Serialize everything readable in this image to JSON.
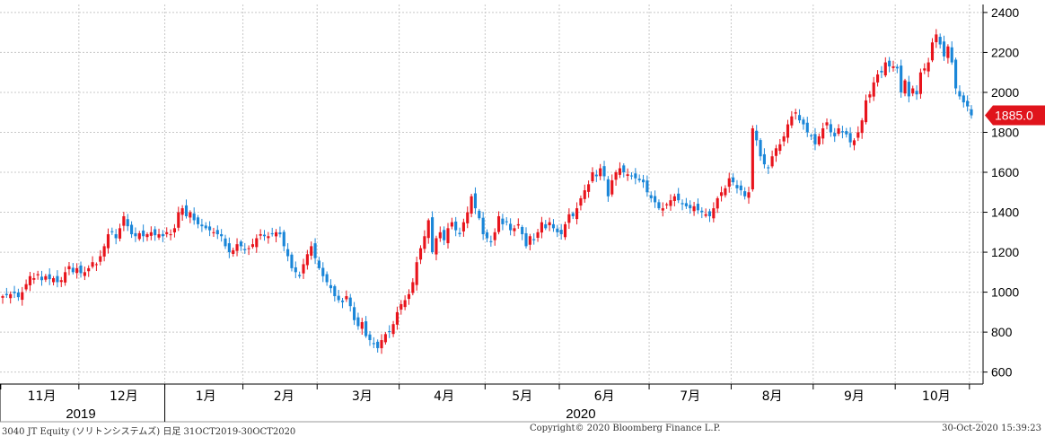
{
  "chart_data": {
    "type": "candlestick",
    "y_axis": {
      "position": "right",
      "ticks": [
        600,
        800,
        1000,
        1200,
        1400,
        1600,
        1800,
        2000,
        2200,
        2400
      ],
      "range": [
        540,
        2440
      ]
    },
    "grid": true,
    "last_price_label": "1885.0",
    "x_axis": {
      "months": [
        {
          "label": "11月",
          "idx": 10
        },
        {
          "label": "12月",
          "idx": 31
        },
        {
          "label": "1月",
          "idx": 52
        },
        {
          "label": "2月",
          "idx": 72
        },
        {
          "label": "3月",
          "idx": 92
        },
        {
          "label": "4月",
          "idx": 113
        },
        {
          "label": "5月",
          "idx": 133
        },
        {
          "label": "6月",
          "idx": 154
        },
        {
          "label": "7月",
          "idx": 176
        },
        {
          "label": "8月",
          "idx": 197
        },
        {
          "label": "9月",
          "idx": 218
        },
        {
          "label": "10月",
          "idx": 239
        }
      ],
      "month_boundaries": [
        0,
        20,
        42,
        62,
        81,
        102,
        124,
        143,
        166,
        187,
        208,
        229,
        250
      ],
      "years": [
        {
          "label": "2019",
          "idx": 20
        },
        {
          "label": "2020",
          "idx": 148
        }
      ]
    },
    "series": [
      {
        "name": "close",
        "values": [
          980,
          985,
          990,
          995,
          975,
          1000,
          1040,
          1080,
          1070,
          1090,
          1060,
          1080,
          1065,
          1070,
          1050,
          1060,
          1100,
          1130,
          1100,
          1120,
          1095,
          1100,
          1120,
          1150,
          1140,
          1180,
          1230,
          1290,
          1300,
          1270,
          1320,
          1380,
          1330,
          1290,
          1280,
          1295,
          1280,
          1290,
          1300,
          1285,
          1290,
          1280,
          1300,
          1290,
          1320,
          1400,
          1420,
          1380,
          1400,
          1360,
          1340,
          1330,
          1320,
          1310,
          1300,
          1290,
          1280,
          1230,
          1200,
          1210,
          1240,
          1230,
          1210,
          1220,
          1240,
          1270,
          1290,
          1280,
          1280,
          1290,
          1300,
          1290,
          1230,
          1180,
          1120,
          1100,
          1080,
          1140,
          1190,
          1230,
          1170,
          1120,
          1080,
          1050,
          1020,
          980,
          960,
          950,
          980,
          930,
          860,
          830,
          850,
          780,
          760,
          740,
          720,
          760,
          790,
          800,
          840,
          900,
          940,
          960,
          990,
          1050,
          1150,
          1220,
          1280,
          1360,
          1200,
          1270,
          1300,
          1260,
          1320,
          1350,
          1310,
          1290,
          1350,
          1400,
          1480,
          1420,
          1370,
          1290,
          1270,
          1250,
          1300,
          1380,
          1340,
          1350,
          1310,
          1320,
          1340,
          1290,
          1230,
          1280,
          1260,
          1300,
          1350,
          1320,
          1350,
          1320,
          1300,
          1290,
          1340,
          1390,
          1380,
          1420,
          1470,
          1510,
          1540,
          1600,
          1580,
          1620,
          1580,
          1480,
          1560,
          1600,
          1620,
          1600,
          1590,
          1580,
          1570,
          1560,
          1550,
          1500,
          1470,
          1450,
          1420,
          1420,
          1440,
          1460,
          1480,
          1460,
          1440,
          1430,
          1420,
          1430,
          1410,
          1400,
          1390,
          1380,
          1420,
          1470,
          1500,
          1520,
          1570,
          1550,
          1520,
          1510,
          1480,
          1500,
          1820,
          1760,
          1680,
          1640,
          1620,
          1680,
          1720,
          1740,
          1780,
          1840,
          1880,
          1900,
          1860,
          1840,
          1800,
          1780,
          1740,
          1780,
          1820,
          1850,
          1800,
          1780,
          1820,
          1800,
          1790,
          1750,
          1760,
          1800,
          1860,
          1960,
          1990,
          2050,
          2090,
          2100,
          2150,
          2130,
          2130,
          2120,
          2000,
          2060,
          1980,
          2020,
          1990,
          2100,
          2120,
          2150,
          2250,
          2290,
          2240,
          2180,
          2230,
          2150,
          2020,
          1980,
          1950,
          1930,
          1885
        ]
      }
    ]
  },
  "footer": {
    "left": "3040 JT Equity (ソリトンシステムズ)  日足 31OCT2019-30OCT2020",
    "center": "Copyright© 2020 Bloomberg Finance L.P.",
    "right": "30-Oct-2020 15:39:23"
  },
  "colors": {
    "up": "#e8141c",
    "down": "#1a86d8",
    "grid": "#c8c8c8",
    "axis": "#000000",
    "price_tag_bg": "#e0141c",
    "price_tag_text": "#ffffff"
  }
}
